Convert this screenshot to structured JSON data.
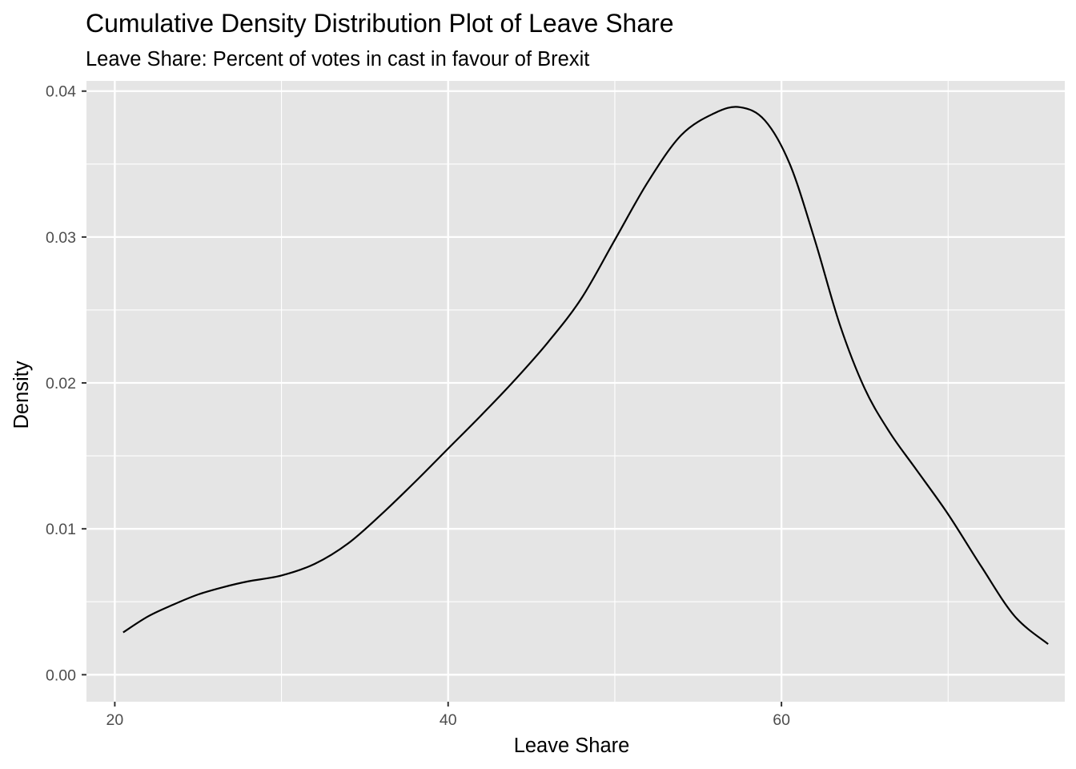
{
  "chart_data": {
    "type": "line",
    "title": "Cumulative Density Distribution Plot of Leave Share",
    "subtitle": "Leave Share: Percent of votes in cast in favour of Brexit",
    "xlabel": "Leave Share",
    "ylabel": "Density",
    "xlim": [
      18.3,
      77.0
    ],
    "ylim": [
      -0.00185,
      0.0407
    ],
    "x_ticks": [
      20,
      40,
      60
    ],
    "x_tick_labels": [
      "20",
      "40",
      "60"
    ],
    "x_minor_ticks": [
      30,
      50,
      70
    ],
    "y_ticks": [
      0.0,
      0.01,
      0.02,
      0.03,
      0.04
    ],
    "y_tick_labels": [
      "0.00",
      "0.01",
      "0.02",
      "0.03",
      "0.04"
    ],
    "y_minor_ticks": [
      0.005,
      0.015,
      0.025,
      0.035
    ],
    "grid": true,
    "panel_background": "#e5e5e5",
    "grid_color": "#ffffff",
    "line_color": "#000000",
    "series": [
      {
        "x": [
          20.5,
          22.0,
          23.5,
          25.0,
          26.5,
          28.0,
          30.0,
          32.0,
          34.0,
          36.0,
          38.0,
          40.0,
          42.0,
          44.0,
          46.0,
          48.0,
          50.0,
          52.0,
          54.0,
          56.0,
          57.5,
          59.0,
          60.5,
          62.0,
          63.5,
          65.0,
          66.5,
          68.0,
          70.0,
          72.0,
          74.0,
          76.0
        ],
        "values": [
          0.0029,
          0.004,
          0.0048,
          0.0055,
          0.006,
          0.0064,
          0.0068,
          0.0076,
          0.009,
          0.011,
          0.0132,
          0.0155,
          0.0178,
          0.0202,
          0.0228,
          0.0258,
          0.0298,
          0.0338,
          0.037,
          0.0385,
          0.0389,
          0.038,
          0.035,
          0.0298,
          0.024,
          0.0196,
          0.0166,
          0.0142,
          0.011,
          0.0074,
          0.004,
          0.0021
        ]
      }
    ]
  }
}
